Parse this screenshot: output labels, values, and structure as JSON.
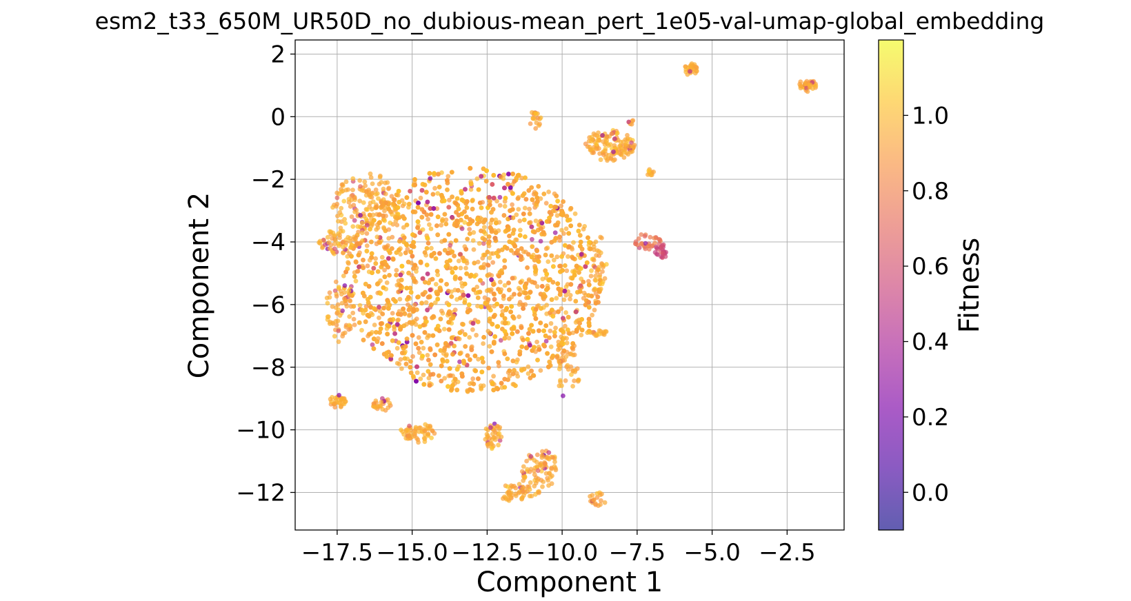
{
  "chart_data": {
    "type": "scatter",
    "title": "esm2_t33_650M_UR50D_no_dubious-mean_pert_1e05-val-umap-global_embedding",
    "xlabel": "Component 1",
    "ylabel": "Component 2",
    "xlim": [
      -18.9,
      -0.6
    ],
    "ylim": [
      -13.2,
      2.45
    ],
    "grid": true,
    "x_ticks": [
      -17.5,
      -15.0,
      -12.5,
      -10.0,
      -7.5,
      -5.0,
      -2.5
    ],
    "x_tick_labels": [
      "−17.5",
      "−15.0",
      "−12.5",
      "−10.0",
      "−7.5",
      "−5.0",
      "−2.5"
    ],
    "y_ticks": [
      2,
      0,
      -2,
      -4,
      -6,
      -8,
      -10,
      -12
    ],
    "y_tick_labels": [
      "2",
      "0",
      "−2",
      "−4",
      "−6",
      "−8",
      "−10",
      "−12"
    ],
    "colormap": "plasma",
    "colormap_alpha": 0.65,
    "colorbar": {
      "label": "Fitness",
      "range": [
        -0.1,
        1.2
      ],
      "ticks": [
        0.0,
        0.2,
        0.4,
        0.6,
        0.8,
        1.0
      ],
      "tick_labels": [
        "0.0",
        "0.2",
        "0.4",
        "0.6",
        "0.8",
        "1.0"
      ]
    },
    "clusters": [
      {
        "cx": -13.0,
        "cy": -5.2,
        "rx": 4.3,
        "ry": 3.6,
        "n": 2600,
        "fitness_mean": 0.95
      },
      {
        "cx": -16.5,
        "cy": -3.0,
        "rx": 1.2,
        "ry": 1.2,
        "n": 160,
        "fitness_mean": 0.95
      },
      {
        "cx": -17.5,
        "cy": -4.0,
        "rx": 0.6,
        "ry": 0.4,
        "n": 50,
        "fitness_mean": 0.95
      },
      {
        "cx": -17.4,
        "cy": -6.2,
        "rx": 0.5,
        "ry": 1.0,
        "n": 60,
        "fitness_mean": 0.95
      },
      {
        "cx": -17.5,
        "cy": -9.1,
        "rx": 0.3,
        "ry": 0.2,
        "n": 30,
        "fitness_mean": 0.95
      },
      {
        "cx": -16.0,
        "cy": -9.2,
        "rx": 0.3,
        "ry": 0.2,
        "n": 25,
        "fitness_mean": 0.95
      },
      {
        "cx": -14.8,
        "cy": -10.1,
        "rx": 0.6,
        "ry": 0.3,
        "n": 55,
        "fitness_mean": 0.95
      },
      {
        "cx": -12.3,
        "cy": -10.2,
        "rx": 0.3,
        "ry": 0.4,
        "n": 40,
        "fitness_mean": 0.95
      },
      {
        "cx": -11.0,
        "cy": -11.4,
        "rx": 0.5,
        "ry": 0.7,
        "n": 55,
        "fitness_mean": 0.95
      },
      {
        "cx": -11.6,
        "cy": -12.0,
        "rx": 0.4,
        "ry": 0.3,
        "n": 40,
        "fitness_mean": 0.95
      },
      {
        "cx": -10.5,
        "cy": -11.2,
        "rx": 0.3,
        "ry": 0.6,
        "n": 35,
        "fitness_mean": 0.95
      },
      {
        "cx": -8.8,
        "cy": -12.2,
        "rx": 0.3,
        "ry": 0.2,
        "n": 20,
        "fitness_mean": 0.95
      },
      {
        "cx": -8.4,
        "cy": -0.9,
        "rx": 0.8,
        "ry": 0.5,
        "n": 130,
        "fitness_mean": 0.95
      },
      {
        "cx": -10.9,
        "cy": -0.1,
        "rx": 0.2,
        "ry": 0.3,
        "n": 20,
        "fitness_mean": 0.95
      },
      {
        "cx": -7.7,
        "cy": -0.2,
        "rx": 0.1,
        "ry": 0.1,
        "n": 6,
        "fitness_mean": 0.95
      },
      {
        "cx": -7.1,
        "cy": -1.8,
        "rx": 0.15,
        "ry": 0.1,
        "n": 10,
        "fitness_mean": 0.95
      },
      {
        "cx": -7.2,
        "cy": -4.0,
        "rx": 0.5,
        "ry": 0.25,
        "n": 30,
        "fitness_mean": 0.75
      },
      {
        "cx": -6.7,
        "cy": -4.3,
        "rx": 0.25,
        "ry": 0.2,
        "n": 25,
        "fitness_mean": 0.55
      },
      {
        "cx": -8.8,
        "cy": -6.9,
        "rx": 0.4,
        "ry": 0.1,
        "n": 20,
        "fitness_mean": 0.95
      },
      {
        "cx": -9.8,
        "cy": -8.0,
        "rx": 0.4,
        "ry": 1.0,
        "n": 45,
        "fitness_mean": 0.95
      },
      {
        "cx": -8.8,
        "cy": -4.8,
        "rx": 0.3,
        "ry": 1.0,
        "n": 35,
        "fitness_mean": 0.95
      },
      {
        "cx": -5.7,
        "cy": 1.5,
        "rx": 0.25,
        "ry": 0.2,
        "n": 30,
        "fitness_mean": 0.95
      },
      {
        "cx": -1.8,
        "cy": 1.0,
        "rx": 0.3,
        "ry": 0.2,
        "n": 35,
        "fitness_mean": 0.95
      }
    ]
  }
}
